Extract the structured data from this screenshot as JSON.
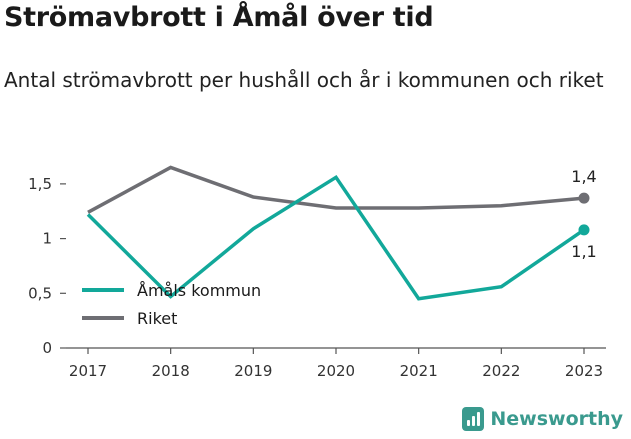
{
  "header": {
    "title": "Strömavbrott i Åmål över tid",
    "subtitle": "Antal strömavbrott per hushåll och år i kommunen och riket"
  },
  "brand": {
    "name": "Newsworthy",
    "icon": "newsworthy-logo-icon",
    "color": "#3a9a8e"
  },
  "chart_data": {
    "type": "line",
    "title": "Strömavbrott i Åmål över tid",
    "subtitle": "Antal strömavbrott per hushåll och år i kommunen och riket",
    "xlabel": "",
    "ylabel": "",
    "x": [
      "2017",
      "2018",
      "2019",
      "2020",
      "2021",
      "2022",
      "2023"
    ],
    "ylim": [
      0,
      1.7
    ],
    "yticks": [
      0,
      0.5,
      1,
      1.5
    ],
    "ytick_labels": [
      "0",
      "0,5",
      "1",
      "1,5"
    ],
    "grid": false,
    "legend_position": "bottom-left",
    "series": [
      {
        "name": "Åmåls kommun",
        "color": "#12a89a",
        "values": [
          1.22,
          0.47,
          1.09,
          1.56,
          0.45,
          0.56,
          1.08
        ],
        "end_label": "1,1"
      },
      {
        "name": "Riket",
        "color": "#6e6e73",
        "values": [
          1.24,
          1.65,
          1.38,
          1.28,
          1.28,
          1.3,
          1.37
        ],
        "end_label": "1,4"
      }
    ]
  }
}
